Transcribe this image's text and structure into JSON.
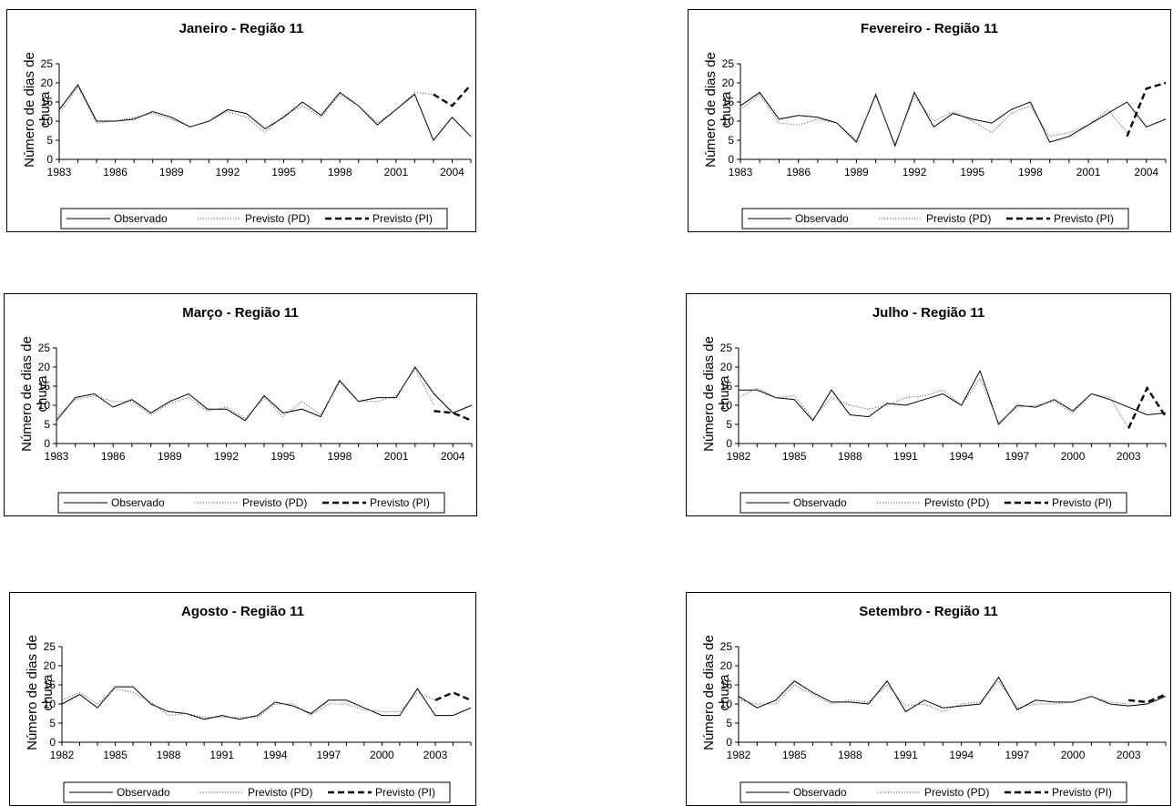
{
  "legend_labels": [
    "Observado",
    "Previsto (PD)",
    "Previsto (PI)"
  ],
  "chart_data": [
    {
      "type": "line",
      "title": "Janeiro - Região 11",
      "ylabel": "Número de dias de chuva",
      "ylim": [
        0,
        25
      ],
      "yticks": [
        0,
        5,
        10,
        15,
        20,
        25
      ],
      "xlim": [
        1983,
        2005
      ],
      "xticks": [
        1983,
        1986,
        1989,
        1992,
        1995,
        1998,
        2001,
        2004
      ],
      "legend_position": "bottom",
      "series": [
        {
          "name": "Observado",
          "x": [
            1983,
            1984,
            1985,
            1986,
            1987,
            1988,
            1989,
            1990,
            1991,
            1992,
            1993,
            1994,
            1995,
            1996,
            1997,
            1998,
            1999,
            2000,
            2001,
            2002,
            2003,
            2004,
            2005
          ],
          "values": [
            13,
            19.5,
            10,
            10,
            10.5,
            12.5,
            11,
            8.5,
            10,
            13,
            12,
            8,
            11,
            15,
            11.5,
            17.5,
            14,
            9,
            13,
            17,
            5,
            11,
            6
          ]
        },
        {
          "name": "Previsto (PD)",
          "x": [
            1983,
            1984,
            1985,
            1986,
            1987,
            1988,
            1989,
            1990,
            1991,
            1992,
            1993,
            1994,
            1995,
            1996,
            1997,
            1998,
            1999,
            2000,
            2001,
            2002,
            2003
          ],
          "values": [
            12,
            19,
            9.5,
            10,
            11,
            12,
            10.5,
            8.5,
            10,
            12.5,
            11,
            7,
            11.5,
            14,
            11,
            17,
            14,
            9.5,
            13,
            17.5,
            17
          ]
        },
        {
          "name": "Previsto (PI)",
          "x": [
            2003,
            2004,
            2005
          ],
          "values": [
            17,
            14,
            19.5
          ]
        }
      ]
    },
    {
      "type": "line",
      "title": "Fevereiro - Região 11",
      "ylabel": "Número de dias de chuva",
      "ylim": [
        0,
        25
      ],
      "yticks": [
        0,
        5,
        10,
        15,
        20,
        25
      ],
      "xlim": [
        1983,
        2005
      ],
      "xticks": [
        1983,
        1986,
        1989,
        1992,
        1995,
        1998,
        2001,
        2004
      ],
      "legend_position": "bottom",
      "series": [
        {
          "name": "Observado",
          "x": [
            1983,
            1984,
            1985,
            1986,
            1987,
            1988,
            1989,
            1990,
            1991,
            1992,
            1993,
            1994,
            1995,
            1996,
            1997,
            1998,
            1999,
            2000,
            2001,
            2002,
            2003,
            2004,
            2005
          ],
          "values": [
            14,
            17.5,
            10.5,
            11.5,
            11,
            9.5,
            4.5,
            17,
            3.5,
            17.5,
            8.5,
            12,
            10.5,
            9.5,
            13,
            15,
            4.5,
            6,
            9,
            12,
            15,
            8.5,
            10.5
          ]
        },
        {
          "name": "Previsto (PD)",
          "x": [
            1983,
            1984,
            1985,
            1986,
            1987,
            1988,
            1989,
            1990,
            1991,
            1992,
            1993,
            1994,
            1995,
            1996,
            1997,
            1998,
            1999,
            2000,
            2001,
            2002,
            2003
          ],
          "values": [
            13,
            17,
            9.5,
            9,
            10.5,
            9.5,
            5,
            16.5,
            4,
            16.5,
            10,
            12.5,
            10,
            7,
            12,
            14,
            6,
            7,
            9,
            13,
            7
          ]
        },
        {
          "name": "Previsto (PI)",
          "x": [
            2003,
            2004,
            2005
          ],
          "values": [
            6,
            18.5,
            20
          ]
        }
      ]
    },
    {
      "type": "line",
      "title": "Março - Região 11",
      "ylabel": "Número de dias de chuva",
      "ylim": [
        0,
        25
      ],
      "yticks": [
        0,
        5,
        10,
        15,
        20,
        25
      ],
      "xlim": [
        1983,
        2005
      ],
      "xticks": [
        1983,
        1986,
        1989,
        1992,
        1995,
        1998,
        2001,
        2004
      ],
      "legend_position": "bottom",
      "series": [
        {
          "name": "Observado",
          "x": [
            1983,
            1984,
            1985,
            1986,
            1987,
            1988,
            1989,
            1990,
            1991,
            1992,
            1993,
            1994,
            1995,
            1996,
            1997,
            1998,
            1999,
            2000,
            2001,
            2002,
            2003,
            2004,
            2005
          ],
          "values": [
            6,
            12,
            13,
            9.5,
            11.5,
            8,
            11,
            13,
            9,
            9,
            6,
            12.5,
            8,
            9,
            7,
            16.5,
            11,
            12,
            12,
            20,
            13,
            8,
            10
          ]
        },
        {
          "name": "Previsto (PD)",
          "x": [
            1983,
            1984,
            1985,
            1986,
            1987,
            1988,
            1989,
            1990,
            1991,
            1992,
            1993,
            1994,
            1995,
            1996,
            1997,
            1998,
            1999,
            2000,
            2001,
            2002,
            2003
          ],
          "values": [
            7,
            11.5,
            12.5,
            11,
            11,
            7.5,
            10.5,
            12,
            8.5,
            9.5,
            6.5,
            12,
            7,
            11,
            7.5,
            16,
            11,
            11,
            12.5,
            19.5,
            10
          ]
        },
        {
          "name": "Previsto (PI)",
          "x": [
            2003,
            2004,
            2005
          ],
          "values": [
            8.5,
            8,
            6
          ]
        }
      ]
    },
    {
      "type": "line",
      "title": "Julho - Região 11",
      "ylabel": "Número de dias de chuva",
      "ylim": [
        0,
        25
      ],
      "yticks": [
        0,
        5,
        10,
        15,
        20,
        25
      ],
      "xlim": [
        1982,
        2005
      ],
      "xticks": [
        1982,
        1985,
        1988,
        1991,
        1994,
        1997,
        2000,
        2003
      ],
      "legend_position": "bottom",
      "series": [
        {
          "name": "Observado",
          "x": [
            1982,
            1983,
            1984,
            1985,
            1986,
            1987,
            1988,
            1989,
            1990,
            1991,
            1992,
            1993,
            1994,
            1995,
            1996,
            1997,
            1998,
            1999,
            2000,
            2001,
            2002,
            2003,
            2004,
            2005
          ],
          "values": [
            14,
            14,
            12,
            11.5,
            6,
            14,
            7.5,
            7,
            10.5,
            10,
            11.5,
            13,
            10,
            19,
            5,
            10,
            9.5,
            11.5,
            8.5,
            13,
            11.5,
            9.5,
            7.5,
            8
          ]
        },
        {
          "name": "Previsto (PD)",
          "x": [
            1982,
            1983,
            1984,
            1985,
            1986,
            1987,
            1988,
            1989,
            1990,
            1991,
            1992,
            1993,
            1994,
            1995,
            1996,
            1997,
            1998,
            1999,
            2000,
            2001,
            2002,
            2003
          ],
          "values": [
            12,
            14.5,
            12,
            12.5,
            6.5,
            12,
            10,
            9,
            10,
            12,
            12.5,
            14,
            10,
            17,
            5.5,
            9.5,
            10,
            11,
            8,
            13,
            12,
            4
          ]
        },
        {
          "name": "Previsto (PI)",
          "x": [
            2003,
            2004,
            2005
          ],
          "values": [
            4,
            14.5,
            7
          ]
        }
      ]
    },
    {
      "type": "line",
      "title": "Agosto - Região 11",
      "ylabel": "Número de dias de chuva",
      "ylim": [
        0,
        25
      ],
      "yticks": [
        0,
        5,
        10,
        15,
        20,
        25
      ],
      "xlim": [
        1982,
        2005
      ],
      "xticks": [
        1982,
        1985,
        1988,
        1991,
        1994,
        1997,
        2000,
        2003
      ],
      "legend_position": "bottom",
      "series": [
        {
          "name": "Observado",
          "x": [
            1982,
            1983,
            1984,
            1985,
            1986,
            1987,
            1988,
            1989,
            1990,
            1991,
            1992,
            1993,
            1994,
            1995,
            1996,
            1997,
            1998,
            1999,
            2000,
            2001,
            2002,
            2003,
            2004,
            2005
          ],
          "values": [
            10,
            12.5,
            9,
            14.5,
            14.5,
            10,
            8,
            7.5,
            6,
            7,
            6,
            7,
            10.5,
            9.5,
            7.5,
            11,
            11,
            9,
            7,
            7,
            14,
            7,
            7,
            9
          ]
        },
        {
          "name": "Previsto (PD)",
          "x": [
            1982,
            1983,
            1984,
            1985,
            1986,
            1987,
            1988,
            1989,
            1990,
            1991,
            1992,
            1993,
            1994,
            1995,
            1996,
            1997,
            1998,
            1999,
            2000,
            2001,
            2002,
            2003
          ],
          "values": [
            11,
            13,
            10,
            14,
            13,
            10.5,
            7,
            7.5,
            6.5,
            6.5,
            6.5,
            6.5,
            10,
            10,
            7,
            10,
            10,
            8.5,
            8,
            8,
            13,
            11
          ]
        },
        {
          "name": "Previsto (PI)",
          "x": [
            2003,
            2004,
            2005
          ],
          "values": [
            11,
            13,
            11
          ]
        }
      ]
    },
    {
      "type": "line",
      "title": "Setembro - Região 11",
      "ylabel": "Número de dias de chuva",
      "ylim": [
        0,
        25
      ],
      "yticks": [
        0,
        5,
        10,
        15,
        20,
        25
      ],
      "xlim": [
        1982,
        2005
      ],
      "xticks": [
        1982,
        1985,
        1988,
        1991,
        1994,
        1997,
        2000,
        2003
      ],
      "legend_position": "bottom",
      "series": [
        {
          "name": "Observado",
          "x": [
            1982,
            1983,
            1984,
            1985,
            1986,
            1987,
            1988,
            1989,
            1990,
            1991,
            1992,
            1993,
            1994,
            1995,
            1996,
            1997,
            1998,
            1999,
            2000,
            2001,
            2002,
            2003,
            2004,
            2005
          ],
          "values": [
            12,
            9,
            11,
            16,
            13,
            10.5,
            10.5,
            10,
            16,
            8,
            11,
            9,
            9.5,
            10,
            17,
            8.5,
            11,
            10.5,
            10.5,
            12,
            10,
            9.5,
            10,
            12
          ]
        },
        {
          "name": "Previsto (PD)",
          "x": [
            1982,
            1983,
            1984,
            1985,
            1986,
            1987,
            1988,
            1989,
            1990,
            1991,
            1992,
            1993,
            1994,
            1995,
            1996,
            1997,
            1998,
            1999,
            2000,
            2001,
            2002,
            2003
          ],
          "values": [
            11,
            10,
            10,
            15,
            12.5,
            10,
            11,
            10.5,
            15,
            9.5,
            10,
            8,
            10,
            10.5,
            16,
            9,
            10,
            10,
            10.5,
            12,
            10.5,
            10
          ]
        },
        {
          "name": "Previsto (PI)",
          "x": [
            2003,
            2004,
            2005
          ],
          "values": [
            11,
            10.5,
            12.5
          ]
        }
      ]
    }
  ]
}
